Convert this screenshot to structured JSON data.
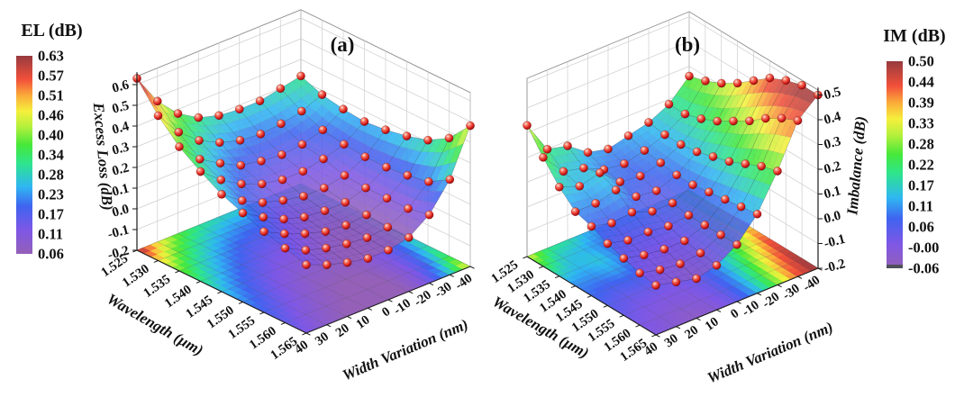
{
  "figure": {
    "background": "#ffffff"
  },
  "colormap": [
    {
      "t": 0.0,
      "c": "#9460b8"
    },
    {
      "t": 0.12,
      "c": "#7e57e6"
    },
    {
      "t": 0.24,
      "c": "#3f64f0"
    },
    {
      "t": 0.34,
      "c": "#2fb7f2"
    },
    {
      "t": 0.46,
      "c": "#2ee58a"
    },
    {
      "t": 0.55,
      "c": "#46e83a"
    },
    {
      "t": 0.64,
      "c": "#b2f03c"
    },
    {
      "t": 0.72,
      "c": "#f5f03c"
    },
    {
      "t": 0.8,
      "c": "#fbab3a"
    },
    {
      "t": 0.88,
      "c": "#f2503a"
    },
    {
      "t": 1.0,
      "c": "#973a3f"
    }
  ],
  "chart_data": [
    {
      "type": "surface3d",
      "panel_label": "(a)",
      "x": {
        "label": "Wavelength (μm)",
        "tick_labels": [
          "1.525",
          "1.530",
          "1.535",
          "1.540",
          "1.545",
          "1.550",
          "1.555",
          "1.560",
          "1.565"
        ]
      },
      "y": {
        "label": "Width Variation (nm)",
        "tick_labels": [
          "40",
          "30",
          "20",
          "10",
          "0",
          "-10",
          "-20",
          "-30",
          "-40"
        ]
      },
      "z": {
        "label": "Excess Loss (dB)",
        "tick_labels": [
          "0.6",
          "0.5",
          "0.4",
          "0.3",
          "0.2",
          "0.1",
          "0.0",
          "-0.1",
          "-0.2"
        ],
        "range": [
          -0.2,
          0.66
        ]
      },
      "colorbar": {
        "title": "EL (dB)",
        "tick_labels": [
          "0.63",
          "0.57",
          "0.51",
          "0.46",
          "0.40",
          "0.34",
          "0.28",
          "0.23",
          "0.17",
          "0.11",
          "0.06"
        ],
        "vmin": 0.06,
        "vmax": 0.63
      },
      "marker": {
        "style": "sphere",
        "color": "#cc1111"
      },
      "grid": {
        "wavelength_um": [
          1.525,
          1.53,
          1.535,
          1.54,
          1.545,
          1.55,
          1.555,
          1.56,
          1.565
        ],
        "width_variation_nm": [
          40,
          30,
          20,
          10,
          0,
          -10,
          -20,
          -30,
          -40
        ],
        "values_db": [
          [
            0.63,
            0.48,
            0.38,
            0.32,
            0.29,
            0.28,
            0.28,
            0.3,
            0.32
          ],
          [
            0.5,
            0.38,
            0.3,
            0.25,
            0.22,
            0.21,
            0.22,
            0.24,
            0.28
          ],
          [
            0.4,
            0.3,
            0.24,
            0.19,
            0.17,
            0.16,
            0.17,
            0.2,
            0.26
          ],
          [
            0.33,
            0.25,
            0.19,
            0.15,
            0.13,
            0.13,
            0.15,
            0.18,
            0.25
          ],
          [
            0.27,
            0.2,
            0.15,
            0.12,
            0.1,
            0.1,
            0.12,
            0.17,
            0.26
          ],
          [
            0.23,
            0.17,
            0.12,
            0.09,
            0.08,
            0.08,
            0.11,
            0.17,
            0.28
          ],
          [
            0.19,
            0.14,
            0.1,
            0.07,
            0.06,
            0.07,
            0.11,
            0.18,
            0.31
          ],
          [
            0.16,
            0.11,
            0.08,
            0.06,
            0.05,
            0.06,
            0.11,
            0.2,
            0.37
          ],
          [
            0.13,
            0.09,
            0.06,
            0.04,
            0.04,
            0.06,
            0.13,
            0.26,
            0.48
          ]
        ]
      }
    },
    {
      "type": "surface3d",
      "panel_label": "(b)",
      "x": {
        "label": "Wavelength (μm)",
        "tick_labels": [
          "1.525",
          "1.530",
          "1.535",
          "1.540",
          "1.545",
          "1.550",
          "1.555",
          "1.560",
          "1.565"
        ]
      },
      "y": {
        "label": "Width Variation (nm)",
        "tick_labels": [
          "40",
          "30",
          "20",
          "10",
          "0",
          "-10",
          "-20",
          "-30",
          "-40"
        ]
      },
      "z": {
        "label": "Imbalance (dB)",
        "tick_labels": [
          "0.5",
          "0.4",
          "0.3",
          "0.2",
          "0.1",
          "0.0",
          "-0.1",
          "-0.2"
        ],
        "range": [
          -0.2,
          0.53
        ]
      },
      "colorbar": {
        "title": "IM (dB)",
        "tick_labels": [
          "0.50",
          "0.44",
          "0.39",
          "0.33",
          "0.28",
          "0.22",
          "0.17",
          "0.11",
          "0.06",
          "-0.00",
          "-0.06"
        ],
        "vmin": -0.06,
        "vmax": 0.5
      },
      "marker": {
        "style": "sphere",
        "color": "#cc1111"
      },
      "grid": {
        "wavelength_um": [
          1.525,
          1.53,
          1.535,
          1.54,
          1.545,
          1.55,
          1.555,
          1.56,
          1.565
        ],
        "width_variation_nm": [
          40,
          30,
          20,
          10,
          0,
          -10,
          -20,
          -30,
          -40
        ],
        "values_db": [
          [
            0.33,
            0.2,
            0.18,
            0.12,
            0.1,
            0.12,
            0.14,
            0.18,
            0.26
          ],
          [
            0.24,
            0.15,
            0.13,
            0.09,
            0.08,
            0.1,
            0.13,
            0.18,
            0.28
          ],
          [
            0.16,
            0.13,
            0.15,
            0.08,
            0.07,
            0.09,
            0.13,
            0.2,
            0.31
          ],
          [
            0.1,
            0.1,
            0.12,
            0.06,
            0.05,
            0.08,
            0.14,
            0.23,
            0.35
          ],
          [
            0.08,
            0.06,
            0.07,
            0.04,
            0.04,
            0.08,
            0.16,
            0.27,
            0.4
          ],
          [
            0.05,
            0.03,
            0.03,
            0.02,
            0.03,
            0.09,
            0.18,
            0.31,
            0.45
          ],
          [
            0.03,
            0.01,
            0.0,
            0.0,
            0.03,
            0.1,
            0.21,
            0.36,
            0.48
          ],
          [
            0.01,
            -0.01,
            -0.02,
            -0.01,
            0.03,
            0.11,
            0.24,
            0.4,
            0.5
          ],
          [
            0.0,
            -0.02,
            -0.04,
            -0.02,
            0.03,
            0.12,
            0.26,
            0.43,
            0.5
          ]
        ]
      }
    }
  ]
}
